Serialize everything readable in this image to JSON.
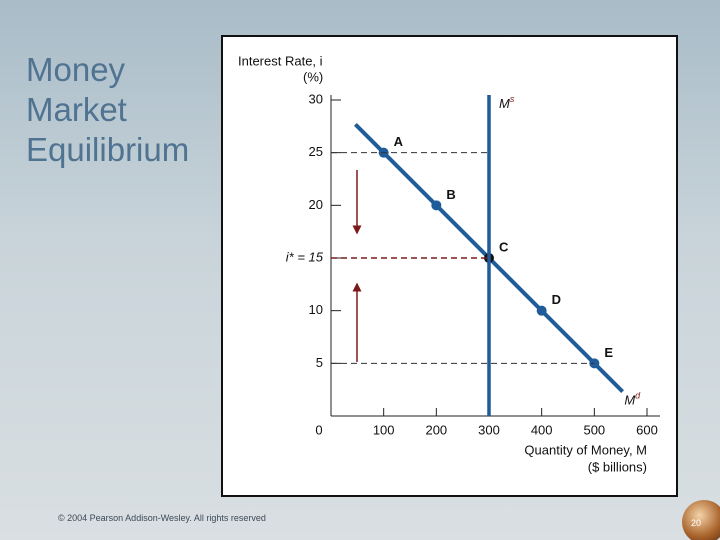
{
  "slide": {
    "title": "Money Market Equilibrium",
    "footer": "© 2004 Pearson Addison-Wesley. All rights reserved",
    "page": "20"
  },
  "chart_data": {
    "type": "line",
    "y_label": "Interest Rate, i",
    "y_unit": "(%)",
    "x_label": "Quantity of Money, M",
    "x_unit": "($ billions)",
    "xlim": [
      0,
      600
    ],
    "xticks": [
      0,
      100,
      200,
      300,
      400,
      500,
      600
    ],
    "ylim": [
      0,
      30
    ],
    "yticks": [
      5,
      10,
      {
        "value": 15,
        "label": "i* = 15"
      },
      20,
      25,
      30
    ],
    "series": [
      {
        "name": "M",
        "sup": "d",
        "color": "#1f5c99",
        "x": [
          100,
          200,
          300,
          400,
          500
        ],
        "values": [
          25,
          20,
          15,
          10,
          5
        ],
        "point_labels": [
          "A",
          "B",
          "C",
          "D",
          "E"
        ]
      },
      {
        "name": "M",
        "sup": "s",
        "color": "#1f5c99",
        "x": [
          300,
          300
        ],
        "values": [
          0,
          30
        ]
      }
    ]
  }
}
